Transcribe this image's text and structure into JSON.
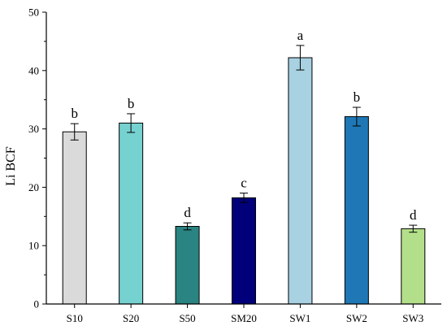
{
  "chart_data": {
    "type": "bar",
    "title": "",
    "xlabel": "",
    "ylabel": "Li BCF",
    "ylim": [
      0,
      50
    ],
    "yticks": [
      0,
      10,
      20,
      30,
      40,
      50
    ],
    "grid": false,
    "categories": [
      "S10",
      "S20",
      "S50",
      "SM20",
      "SW1",
      "SW2",
      "SW3"
    ],
    "values": [
      29.5,
      31.0,
      13.3,
      18.2,
      42.2,
      32.1,
      12.9
    ],
    "errors": [
      1.4,
      1.6,
      0.6,
      0.8,
      2.1,
      1.6,
      0.6
    ],
    "significance_letters": [
      "b",
      "b",
      "d",
      "c",
      "a",
      "b",
      "d"
    ],
    "colors": [
      "#dadada",
      "#76d2d0",
      "#2a8481",
      "#01007a",
      "#a8d1e2",
      "#1f78b5",
      "#b3df8a"
    ]
  }
}
